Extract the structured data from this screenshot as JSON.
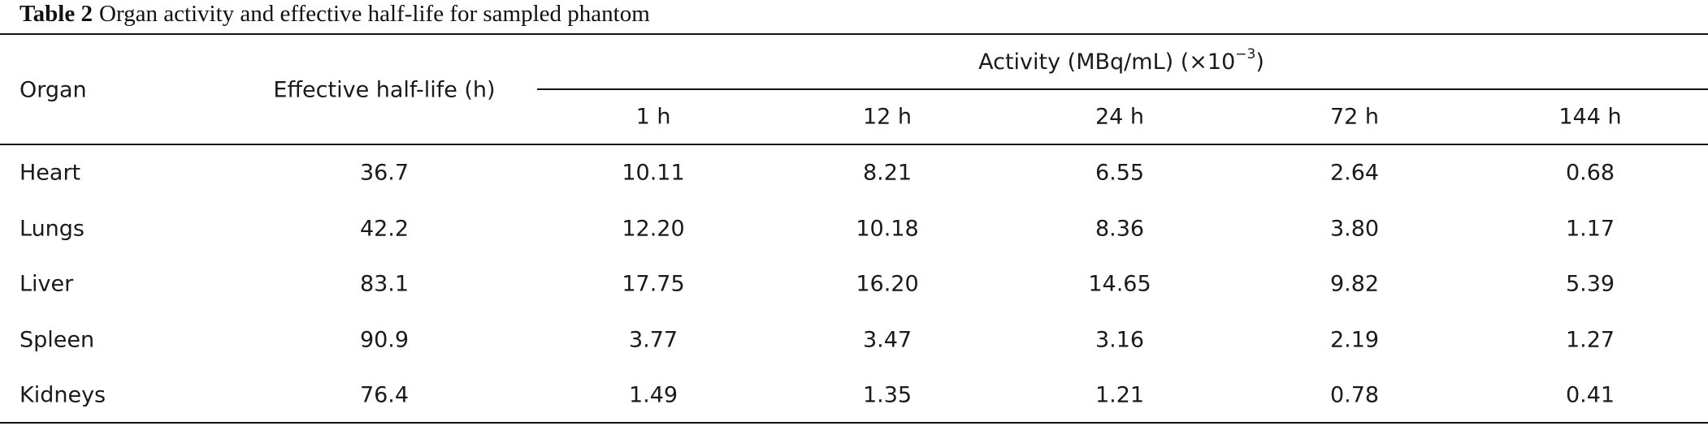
{
  "caption": {
    "label": "Table 2",
    "title": "Organ activity and effective half-life for sampled phantom"
  },
  "table": {
    "header": {
      "organ": "Organ",
      "half_life": "Effective half-life (h)",
      "activity": {
        "prefix": "Activity (MBq/mL) (×10",
        "exponent": "−3",
        "suffix": ")"
      },
      "times": [
        "1 h",
        "12 h",
        "24 h",
        "72 h",
        "144 h"
      ]
    },
    "rows": [
      [
        "Heart",
        "36.7",
        "10.11",
        "8.21",
        "6.55",
        "2.64",
        "0.68"
      ],
      [
        "Lungs",
        "42.2",
        "12.20",
        "10.18",
        "8.36",
        "3.80",
        "1.17"
      ],
      [
        "Liver",
        "83.1",
        "17.75",
        "16.20",
        "14.65",
        "9.82",
        "5.39"
      ],
      [
        "Spleen",
        "90.9",
        "3.77",
        "3.47",
        "3.16",
        "2.19",
        "1.27"
      ],
      [
        "Kidneys",
        "76.4",
        "1.49",
        "1.35",
        "1.21",
        "0.78",
        "0.41"
      ]
    ]
  }
}
